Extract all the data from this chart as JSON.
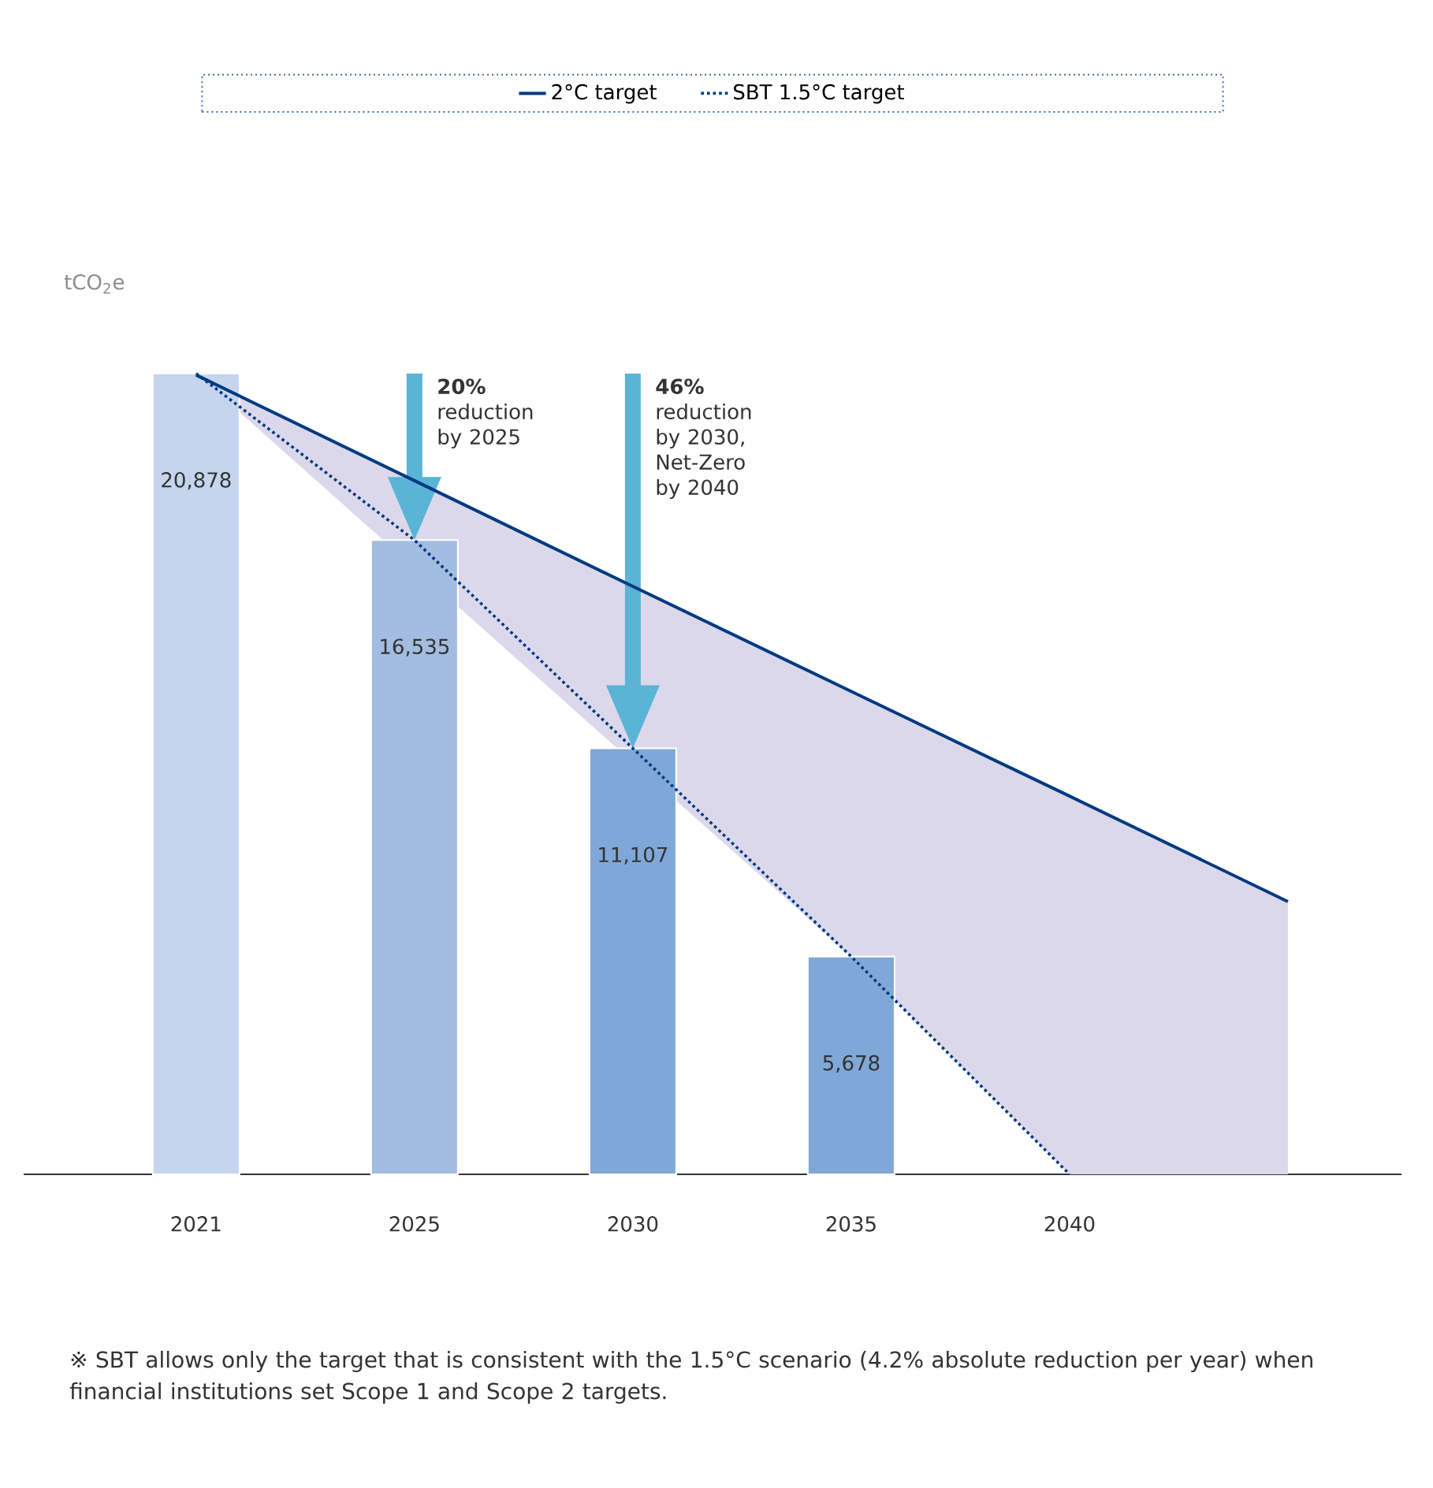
{
  "chart_data": {
    "type": "bar",
    "categories": [
      "2021",
      "2025",
      "2030",
      "2035",
      "2040",
      null
    ],
    "ylabel": "tCO$_{2}$e",
    "legend": "top",
    "tick_labels": "x",
    "series": [
      {
        "type": "bar",
        "colors": [
          "#c5d5ee",
          "#a3bde2",
          "#7fa8d8",
          "#7fa8d8",
          null,
          null
        ],
        "values": [
          20878,
          16535,
          11107,
          5678,
          null,
          null
        ],
        "value_labels": [
          "20,878",
          "16,535",
          "11,107",
          "5,678",
          null,
          null
        ]
      },
      {
        "type": "line",
        "name": "2°C target",
        "color": "#003a80",
        "line_style": "solid",
        "values": [
          20840,
          18085,
          15330,
          12590,
          9860,
          7110
        ]
      },
      {
        "type": "line",
        "name": "SBT 1.5°C target",
        "color": "#003a80",
        "line_style": "dotted",
        "values": [
          20878,
          16535,
          11107,
          5678,
          0,
          null
        ],
        "lower": [
          20878,
          null,
          null,
          5678,
          0,
          0
        ],
        "upper": [
          20840,
          null,
          null,
          12590,
          9860,
          7110
        ]
      }
    ],
    "annotations": [
      "**20%** reduction by 2025",
      "**46%** reduction by 2030, Net-Zero by 2040",
      "※ SBT allows only the target that is consistent with the 1.5°C scenario (4.2% absolute reduction per year) when financial institutions set Scope 1 and Scope 2 targets."
    ]
  }
}
